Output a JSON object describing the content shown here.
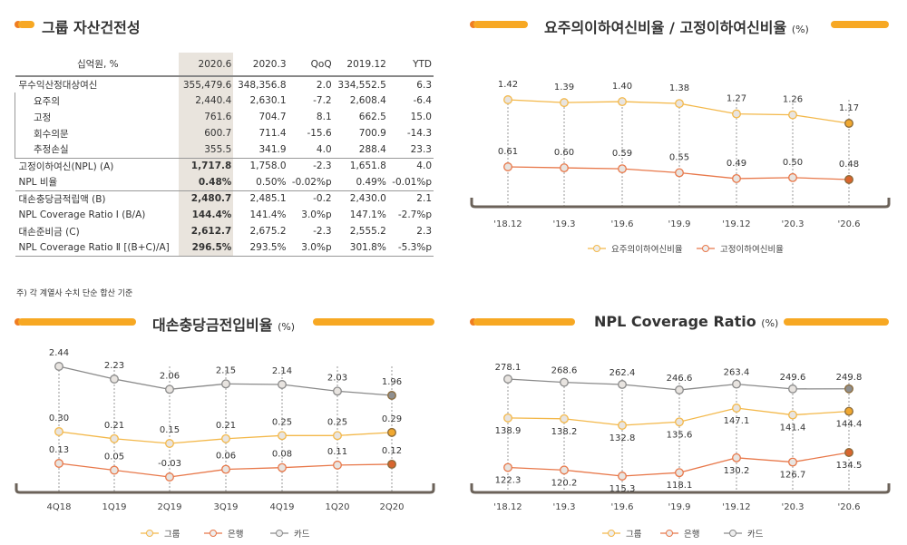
{
  "table_section": {
    "title": "그룹 자산건전성",
    "headers": [
      "십억원, %",
      "2020.6",
      "2020.3",
      "QoQ",
      "2019.12",
      "YTD"
    ],
    "rows": [
      [
        "무수익산정대상여신",
        "355,479.6",
        "348,356.8",
        "2.0",
        "334,552.5",
        "6.3"
      ],
      [
        "요주의",
        "2,440.4",
        "2,630.1",
        "-7.2",
        "2,608.4",
        "-6.4"
      ],
      [
        "고정",
        "761.6",
        "704.7",
        "8.1",
        "662.5",
        "15.0"
      ],
      [
        "회수의문",
        "600.7",
        "711.4",
        "-15.6",
        "700.9",
        "-14.3"
      ],
      [
        "추정손실",
        "355.5",
        "341.9",
        "4.0",
        "288.4",
        "23.3"
      ],
      [
        "고정이하여신(NPL) (A)",
        "1,717.8",
        "1,758.0",
        "-2.3",
        "1,651.8",
        "4.0"
      ],
      [
        "NPL 비율",
        "0.48%",
        "0.50%",
        "-0.02%p",
        "0.49%",
        "-0.01%p"
      ],
      [
        "대손충당금적립액 (B)",
        "2,480.7",
        "2,485.1",
        "-0.2",
        "2,430.0",
        "2.1"
      ],
      [
        "NPL Coverage Ratio I (B/A)",
        "144.4%",
        "141.4%",
        "3.0%p",
        "147.1%",
        "-2.7%p"
      ],
      [
        "대손준비금 (C)",
        "2,612.7",
        "2,675.2",
        "-2.3",
        "2,555.2",
        "2.3"
      ],
      [
        "NPL Coverage Ratio Ⅱ [(B+C)/A]",
        "296.5%",
        "293.5%",
        "3.0%p",
        "301.8%",
        "-5.3%p"
      ]
    ],
    "note": "주) 각 계열사 수치 단순 합산 기준"
  },
  "colors": {
    "accent": "#f7a823",
    "orange": "#ef7d22",
    "group": "#f3b84a",
    "bank": "#e8784a",
    "card": "#8a8a8a",
    "axis": "#6b6259"
  },
  "chart_data": [
    {
      "type": "line",
      "title": "요주의이하여신비율 / 고정이하여신비율",
      "unit": "(%)",
      "categories": [
        "'18.12",
        "'19.3",
        "'19.6",
        "'19.9",
        "'19.12",
        "'20.3",
        "'20.6"
      ],
      "series": [
        {
          "name": "요주의이하여신비율",
          "values": [
            1.42,
            1.39,
            1.4,
            1.38,
            1.27,
            1.26,
            1.17
          ]
        },
        {
          "name": "고정이하여신비율",
          "values": [
            0.61,
            0.6,
            0.59,
            0.55,
            0.49,
            0.5,
            0.48
          ]
        }
      ],
      "legend": "bottom"
    },
    {
      "type": "line",
      "title": "대손충당금전입비율",
      "unit": "(%)",
      "categories": [
        "4Q18",
        "1Q19",
        "2Q19",
        "3Q19",
        "4Q19",
        "1Q20",
        "2Q20"
      ],
      "series": [
        {
          "name": "그룹",
          "values": [
            0.3,
            0.21,
            0.15,
            0.21,
            0.25,
            0.25,
            0.29
          ]
        },
        {
          "name": "은행",
          "values": [
            0.13,
            0.05,
            -0.03,
            0.06,
            0.08,
            0.11,
            0.12
          ]
        },
        {
          "name": "카드",
          "values": [
            2.44,
            2.23,
            2.06,
            2.15,
            2.14,
            2.03,
            1.96
          ]
        }
      ],
      "legend": "bottom"
    },
    {
      "type": "line",
      "title": "NPL Coverage Ratio",
      "unit": "(%)",
      "categories": [
        "'18.12",
        "'19.3",
        "'19.6",
        "'19.9",
        "'19.12",
        "'20.3",
        "'20.6"
      ],
      "series": [
        {
          "name": "그룹",
          "values": [
            138.9,
            138.2,
            132.8,
            135.6,
            147.1,
            141.4,
            144.4
          ]
        },
        {
          "name": "은행",
          "values": [
            122.3,
            120.2,
            115.3,
            118.1,
            130.2,
            126.7,
            134.5
          ]
        },
        {
          "name": "카드",
          "values": [
            278.1,
            268.6,
            262.4,
            246.6,
            263.4,
            249.6,
            249.8
          ]
        }
      ],
      "legend": "bottom"
    }
  ]
}
